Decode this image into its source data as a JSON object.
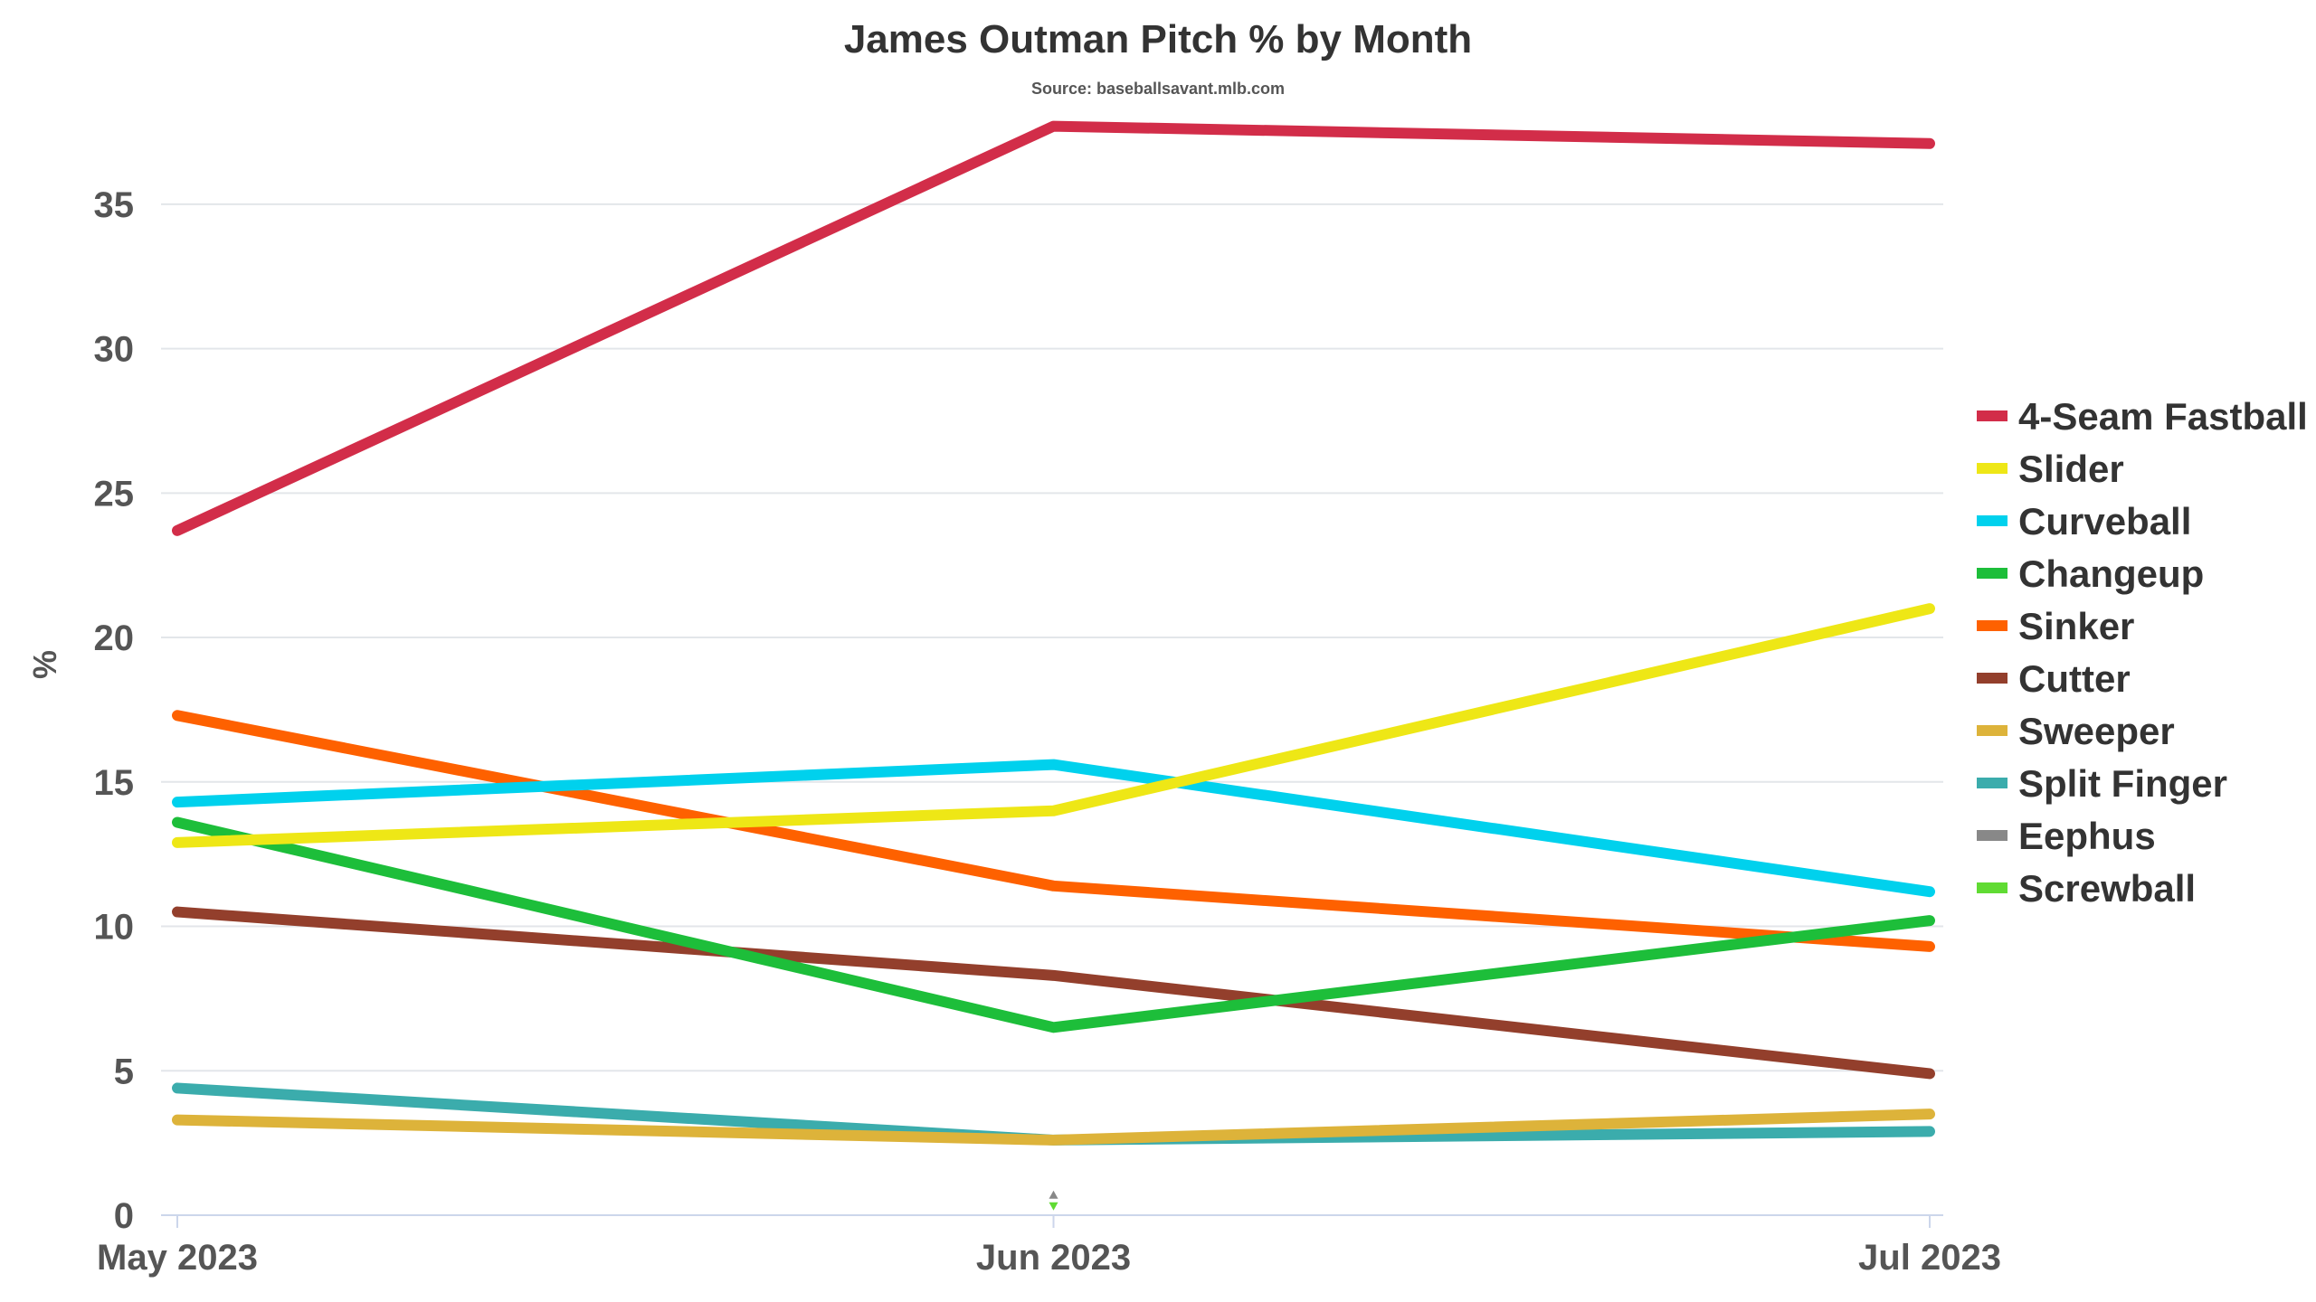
{
  "chart_data": {
    "type": "line",
    "title": "James Outman Pitch % by Month",
    "subtitle": "Source: baseballsavant.mlb.com",
    "xlabel": "",
    "ylabel": "%",
    "categories": [
      "May 2023",
      "Jun 2023",
      "Jul 2023"
    ],
    "ylim": [
      0,
      38
    ],
    "yticks": [
      0,
      5,
      10,
      15,
      20,
      25,
      30,
      35
    ],
    "grid": true,
    "legend_position": "right",
    "series": [
      {
        "name": "4-Seam Fastball",
        "color": "#d22d49",
        "values": [
          23.7,
          37.7,
          37.1
        ]
      },
      {
        "name": "Slider",
        "color": "#eee716",
        "values": [
          12.9,
          14.0,
          21.0
        ]
      },
      {
        "name": "Curveball",
        "color": "#00d1ed",
        "values": [
          14.3,
          15.6,
          11.2
        ]
      },
      {
        "name": "Changeup",
        "color": "#1dbe3a",
        "values": [
          13.6,
          6.5,
          10.2
        ]
      },
      {
        "name": "Sinker",
        "color": "#fe6100",
        "values": [
          17.3,
          11.4,
          9.3
        ]
      },
      {
        "name": "Cutter",
        "color": "#933f2c",
        "values": [
          10.5,
          8.3,
          4.9
        ]
      },
      {
        "name": "Sweeper",
        "color": "#ddb33a",
        "values": [
          3.3,
          2.6,
          3.5
        ]
      },
      {
        "name": "Split Finger",
        "color": "#3bacac",
        "values": [
          4.4,
          2.6,
          2.9
        ]
      },
      {
        "name": "Eephus",
        "color": "#888888",
        "values": [
          null,
          0.1,
          null
        ]
      },
      {
        "name": "Screwball",
        "color": "#60db33",
        "values": [
          null,
          0.1,
          null
        ]
      }
    ]
  }
}
